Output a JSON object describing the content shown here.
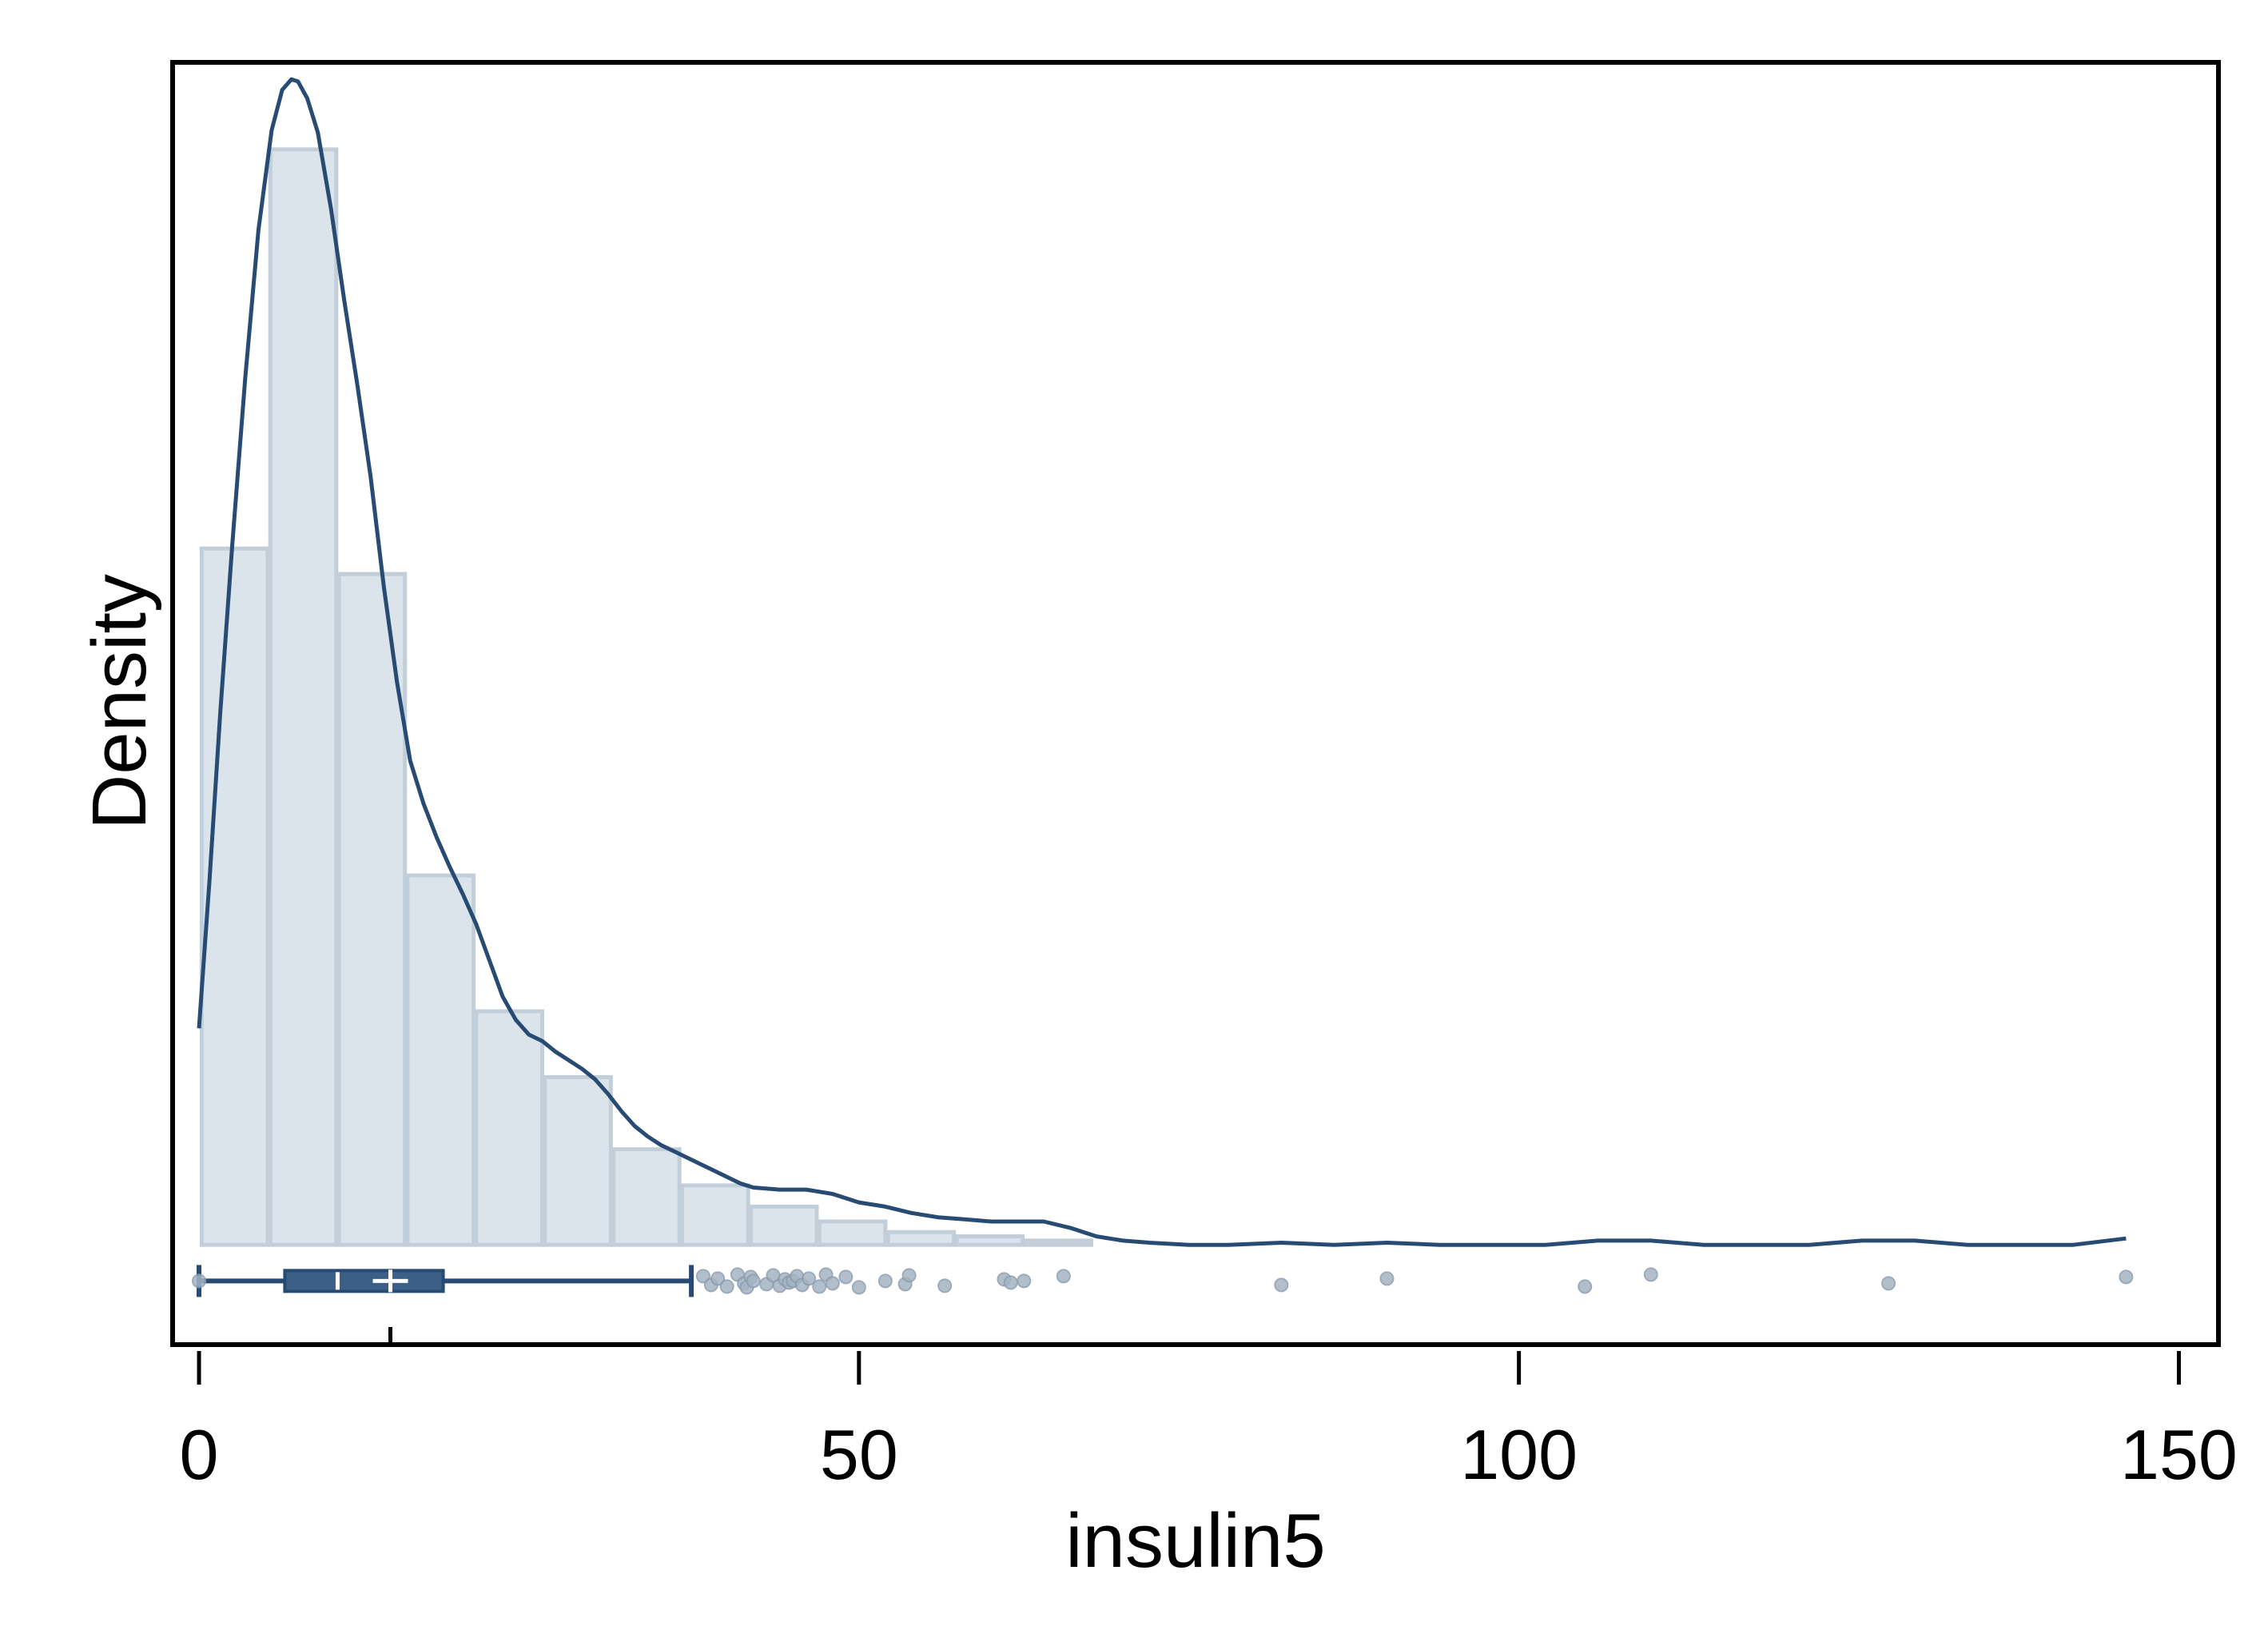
{
  "chart_data": {
    "type": "histogram",
    "xlabel": "insulin5",
    "ylabel": "Density",
    "xlim": [
      -2,
      153
    ],
    "ylim": [
      -0.0047,
      0.0557
    ],
    "grid": false,
    "legend": "none",
    "x_ticks": [
      0,
      50,
      100,
      150
    ],
    "x_tick_labels": [
      "0",
      "50",
      "100",
      "150"
    ],
    "y_ticks_shown": false,
    "colors": {
      "bar_fill": "#dce4eb",
      "bar_stroke": "#c2ced8",
      "line": "#284b73",
      "box_fill": "#3b5f87",
      "outlier": "#a5b4c3",
      "frame": "#000000"
    },
    "histogram": {
      "bin_width": 5.2,
      "bins": [
        {
          "start": 0.2,
          "end": 5.2,
          "density": 0.0328
        },
        {
          "start": 5.4,
          "end": 10.4,
          "density": 0.0516
        },
        {
          "start": 10.6,
          "end": 15.6,
          "density": 0.0316
        },
        {
          "start": 15.8,
          "end": 20.8,
          "density": 0.0174
        },
        {
          "start": 21.0,
          "end": 26.0,
          "density": 0.011
        },
        {
          "start": 26.2,
          "end": 31.2,
          "density": 0.0079
        },
        {
          "start": 31.4,
          "end": 36.4,
          "density": 0.0045
        },
        {
          "start": 36.6,
          "end": 41.6,
          "density": 0.0028
        },
        {
          "start": 41.8,
          "end": 46.8,
          "density": 0.0018
        },
        {
          "start": 47.0,
          "end": 52.0,
          "density": 0.0011
        },
        {
          "start": 52.2,
          "end": 57.2,
          "density": 0.0006
        },
        {
          "start": 57.4,
          "end": 62.4,
          "density": 0.0004
        },
        {
          "start": 62.6,
          "end": 67.6,
          "density": 0.0002
        }
      ]
    },
    "density_curve": {
      "x": [
        0,
        0.8,
        1.6,
        2.5,
        3.5,
        4.5,
        5.5,
        6.3,
        7.0,
        7.5,
        8.2,
        9.0,
        10.0,
        11.0,
        12.0,
        13.0,
        14.0,
        15.0,
        16.0,
        17.0,
        18.0,
        19.0,
        20.0,
        21.0,
        22.0,
        23.0,
        24.0,
        25.0,
        26.0,
        27.0,
        28.0,
        29.0,
        30.0,
        31.0,
        32.0,
        33.0,
        34.0,
        35.0,
        36.0,
        37.0,
        38.0,
        39.0,
        40.0,
        41.0,
        42.0,
        44.0,
        46.0,
        48.0,
        50.0,
        52.0,
        54.0,
        56.0,
        58.0,
        60.0,
        62.0,
        64.0,
        66.0,
        68.0,
        70.0,
        72.0,
        75.0,
        78.0,
        82.0,
        86.0,
        90.0,
        94.0,
        98.0,
        102.0,
        106.0,
        110.0,
        114.0,
        118.0,
        122.0,
        126.0,
        130.0,
        134.0,
        138.0,
        142.0,
        146.0
      ],
      "y": [
        0.0102,
        0.0172,
        0.025,
        0.0328,
        0.0408,
        0.0478,
        0.0525,
        0.0544,
        0.0549,
        0.0548,
        0.054,
        0.0524,
        0.0488,
        0.0445,
        0.0405,
        0.0362,
        0.031,
        0.0265,
        0.0228,
        0.0208,
        0.0192,
        0.0178,
        0.0165,
        0.0151,
        0.0134,
        0.0117,
        0.0106,
        0.0099,
        0.0096,
        0.0091,
        0.0087,
        0.0083,
        0.0078,
        0.0071,
        0.0063,
        0.0056,
        0.0051,
        0.0047,
        0.0044,
        0.0041,
        0.0038,
        0.0035,
        0.0032,
        0.0029,
        0.0027,
        0.0026,
        0.0026,
        0.0024,
        0.002,
        0.0018,
        0.0015,
        0.0013,
        0.0012,
        0.0011,
        0.0011,
        0.0011,
        0.0008,
        0.0004,
        0.0002,
        0.0001,
        0.0,
        0.0,
        0.0001,
        0.0,
        0.0001,
        0.0,
        0.0,
        0.0,
        0.0002,
        0.0002,
        0.0,
        0.0,
        0.0,
        0.0002,
        0.0002,
        0.0,
        0.0,
        0.0,
        0.0003
      ]
    },
    "boxplot": {
      "min": 0,
      "q1": 6.5,
      "median": 10.5,
      "q3": 18.5,
      "max": 37.3,
      "mean": 14.5,
      "y_level": -0.0017,
      "outliers": [
        0,
        38.2,
        38.8,
        39.3,
        40.0,
        40.8,
        41.3,
        41.8,
        41.5,
        42.0,
        43.0,
        43.5,
        44.0,
        44.4,
        44.7,
        45.0,
        45.3,
        45.7,
        46.2,
        47.0,
        47.5,
        48.0,
        49.0,
        50.0,
        52.0,
        53.5,
        53.8,
        56.5,
        61.0,
        61.5,
        62.5,
        65.5,
        82.0,
        90.0,
        105.0,
        110.0,
        128.0,
        146.0
      ]
    }
  }
}
